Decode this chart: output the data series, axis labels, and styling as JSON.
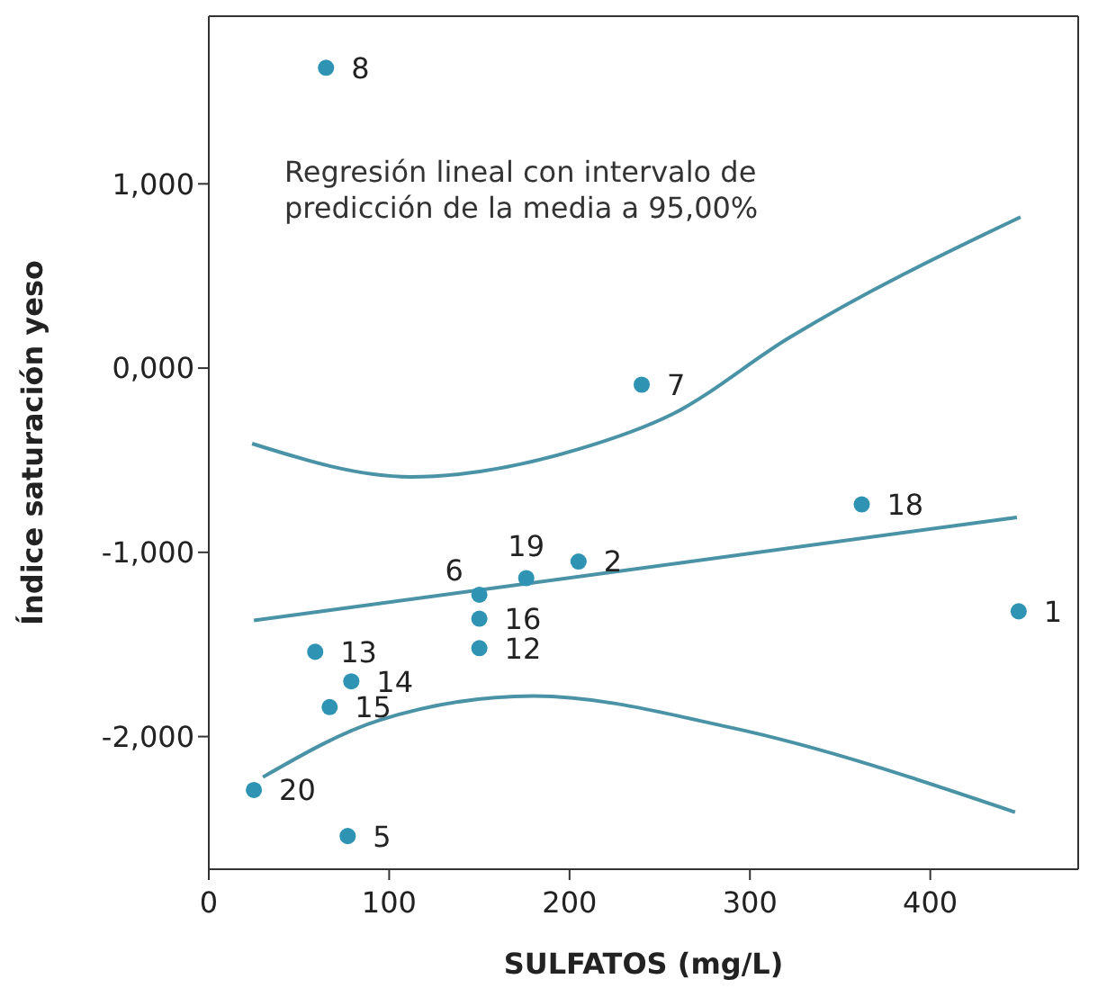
{
  "chart_data": {
    "type": "scatter",
    "xlabel": "SULFATOS (mg/L)",
    "ylabel": "Índice saturación yeso",
    "xlim": [
      0,
      482
    ],
    "xticks": [
      0,
      100,
      200,
      300,
      400
    ],
    "ylim": [
      -2.72,
      1.91
    ],
    "yticks": [
      {
        "value": -2,
        "label": "-2,000"
      },
      {
        "value": -1,
        "label": "-1,000"
      },
      {
        "value": 0,
        "label": "0,000"
      },
      {
        "value": 1,
        "label": "1,000"
      }
    ],
    "grid": false,
    "marker": "circle",
    "series": [
      {
        "color": "#2f93b3",
        "x": [
          449,
          205,
          77,
          150,
          240,
          65,
          150,
          59,
          79,
          67,
          150,
          362,
          176,
          25
        ],
        "values": [
          -1.32,
          -1.05,
          -2.54,
          -1.23,
          -0.09,
          1.63,
          -1.52,
          -1.54,
          -1.7,
          -1.84,
          -1.36,
          -0.74,
          -1.14,
          -2.29
        ]
      },
      {
        "type": "line",
        "color": "#4a93a6",
        "marker": "none",
        "x": [
          25,
          448
        ],
        "values": [
          -1.37,
          -0.81
        ]
      },
      {
        "type": "line",
        "color": "#4a93a6",
        "marker": "none",
        "x": [
          24,
          112,
          205,
          257,
          321,
          450
        ],
        "values": [
          -0.41,
          -0.59,
          -0.44,
          -0.25,
          0.16,
          0.82
        ]
      },
      {
        "type": "line",
        "color": "#4a93a6",
        "marker": "none",
        "x": [
          30,
          95,
          180,
          289,
          447
        ],
        "values": [
          -2.22,
          -1.91,
          -1.78,
          -1.95,
          -2.41
        ]
      }
    ],
    "annotations": [
      "Regresión lineal con intervalo de predicción de la media a 95,00%",
      {
        "text": "1",
        "x": 449,
        "y": -1.32
      },
      {
        "text": "2",
        "x": 205,
        "y": -1.05
      },
      {
        "text": "5",
        "x": 77,
        "y": -2.54
      },
      {
        "text": "6",
        "x": 150,
        "y": -1.23
      },
      {
        "text": "7",
        "x": 240,
        "y": -0.09
      },
      {
        "text": "8",
        "x": 65,
        "y": 1.63
      },
      {
        "text": "12",
        "x": 150,
        "y": -1.52
      },
      {
        "text": "13",
        "x": 59,
        "y": -1.54
      },
      {
        "text": "14",
        "x": 79,
        "y": -1.7
      },
      {
        "text": "15",
        "x": 67,
        "y": -1.84
      },
      {
        "text": "16",
        "x": 150,
        "y": -1.36
      },
      {
        "text": "18",
        "x": 362,
        "y": -0.74
      },
      {
        "text": "19",
        "x": 176,
        "y": -1.14
      },
      {
        "text": "20",
        "x": 25,
        "y": -2.29
      }
    ]
  }
}
